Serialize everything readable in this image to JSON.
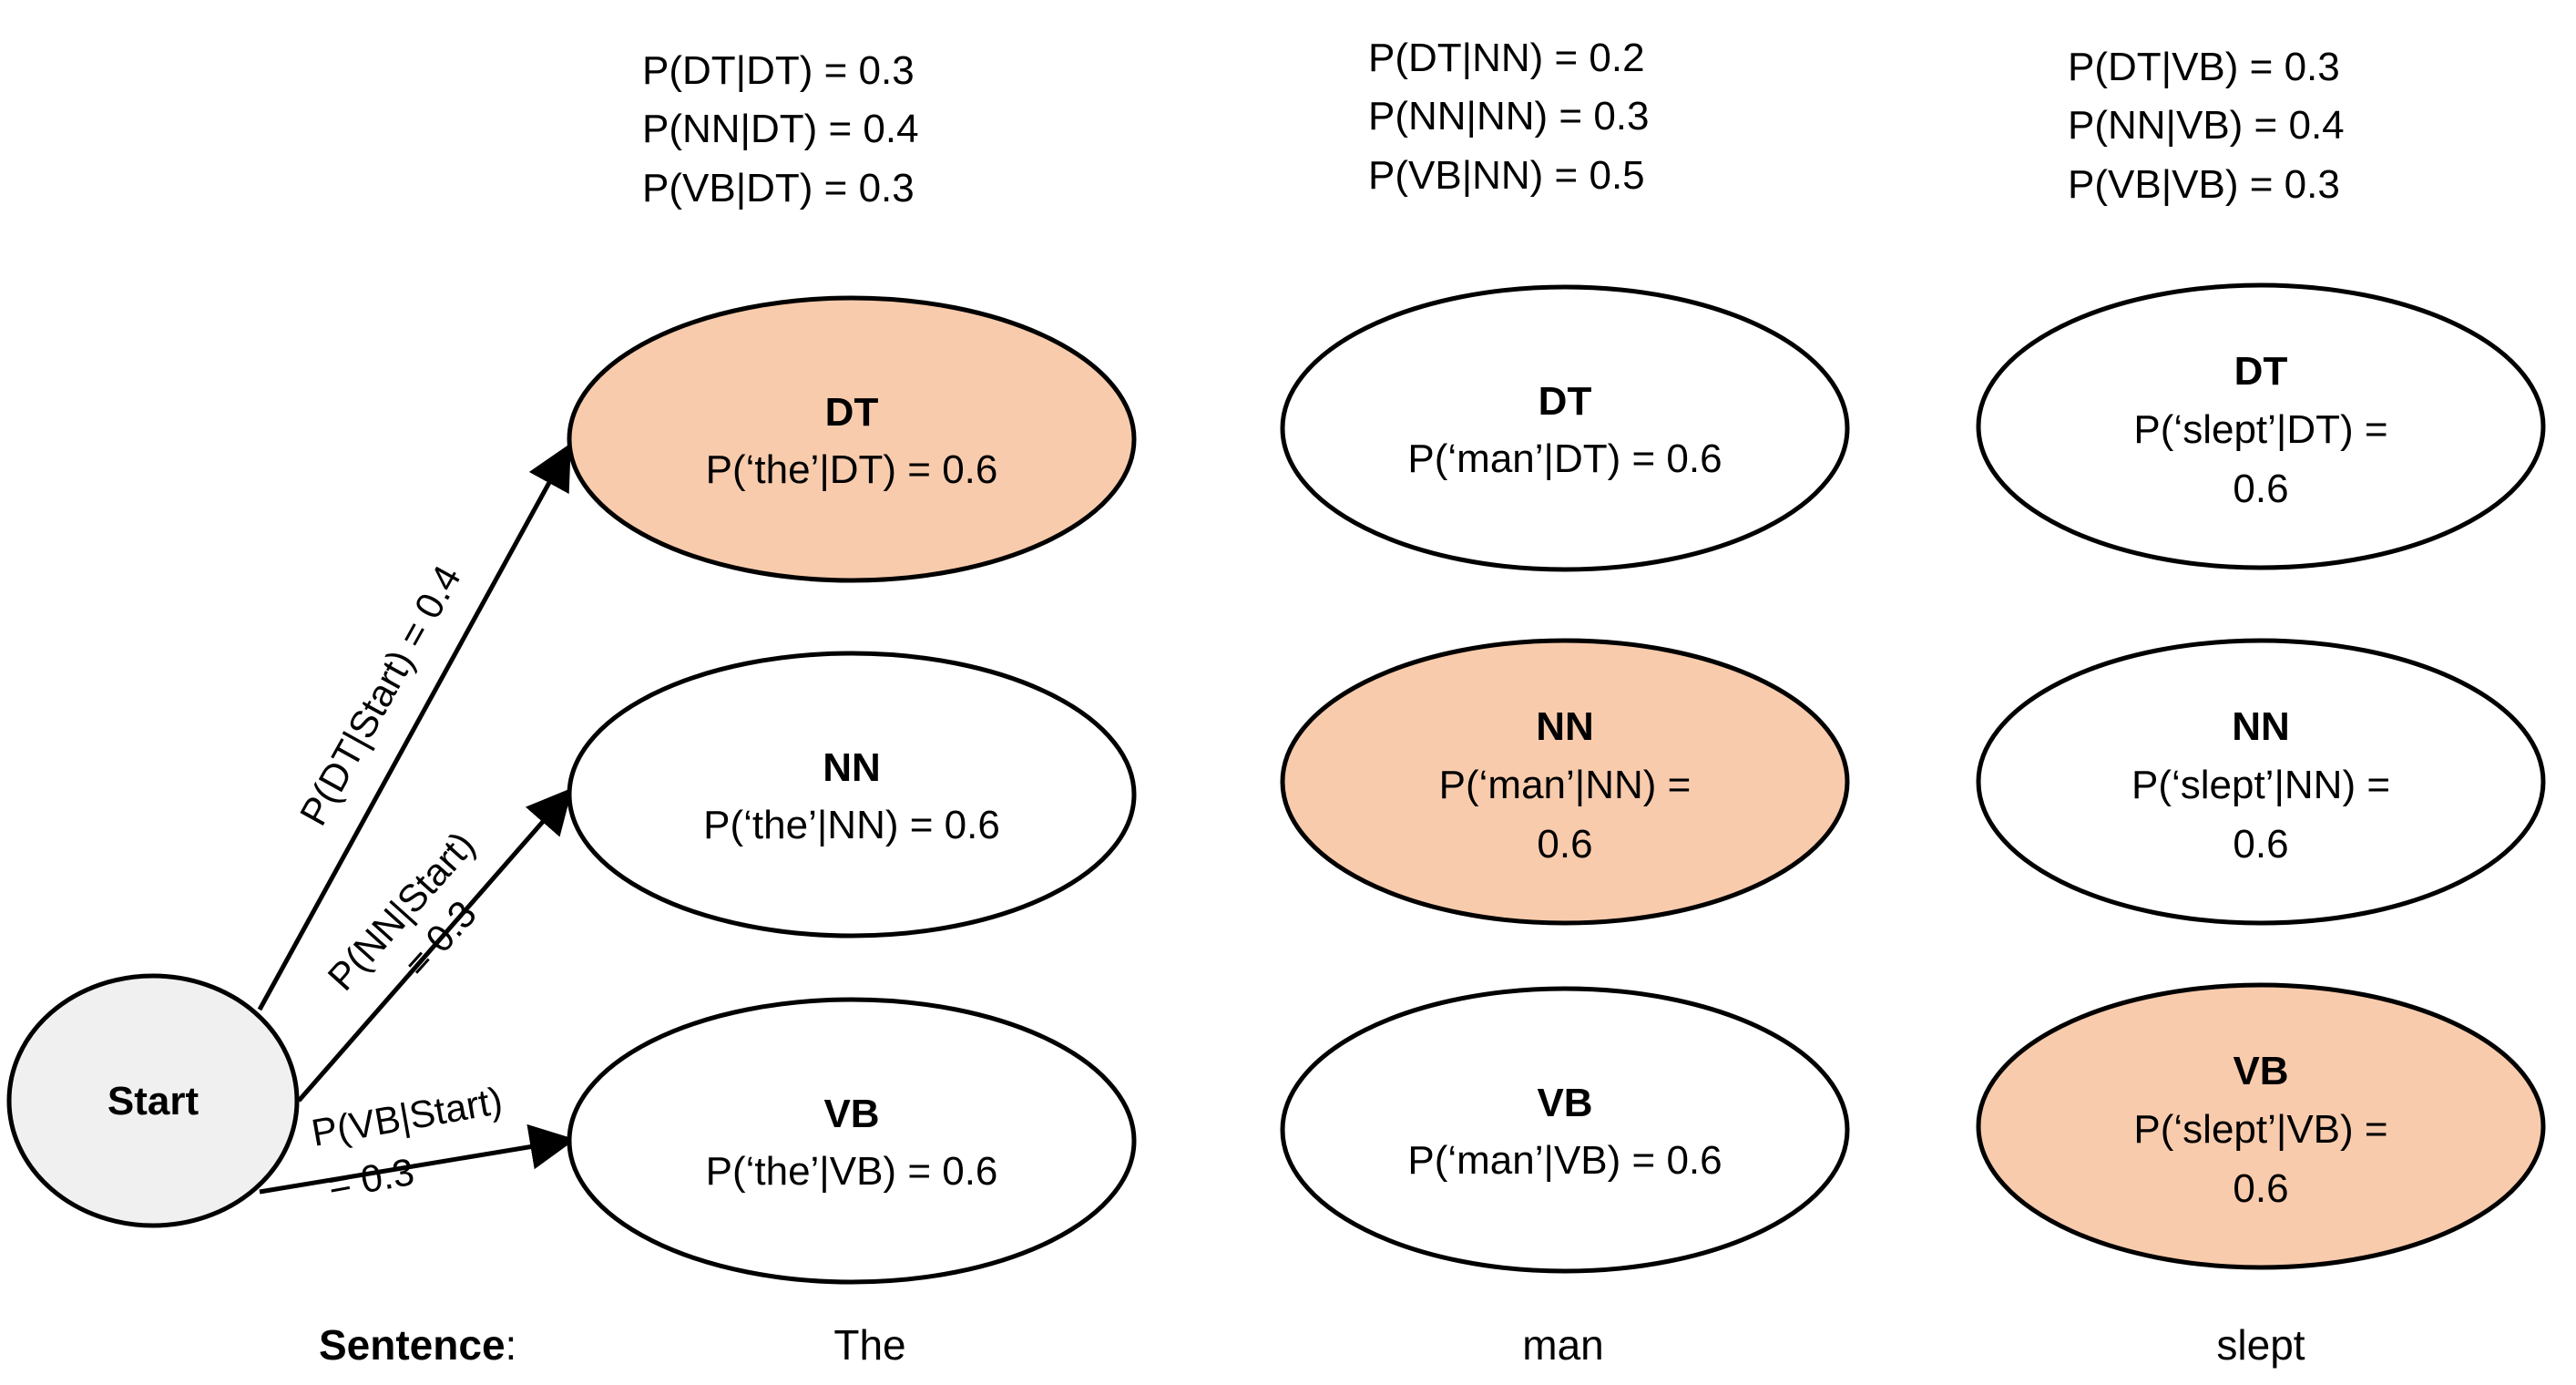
{
  "start": {
    "label": "Start",
    "fill": "#f0f0f0"
  },
  "highlight_color": "#f8cbad",
  "columns": [
    {
      "word": "The",
      "transitions": [
        "P(DT|DT)  = 0.3",
        "P(NN|DT) = 0.4",
        "P(VB|DT)  = 0.3"
      ],
      "nodes": [
        {
          "tag": "DT",
          "lines": [
            "P(‘the’|DT) = 0.6"
          ],
          "highlighted": true
        },
        {
          "tag": "NN",
          "lines": [
            "P(‘the’|NN) = 0.6"
          ],
          "highlighted": false
        },
        {
          "tag": "VB",
          "lines": [
            "P(‘the’|VB) = 0.6"
          ],
          "highlighted": false
        }
      ]
    },
    {
      "word": "man",
      "transitions": [
        "P(DT|NN)  = 0.2",
        "P(NN|NN) = 0.3",
        "P(VB|NN)  = 0.5"
      ],
      "nodes": [
        {
          "tag": "DT",
          "lines": [
            "P(‘man’|DT) = 0.6"
          ],
          "highlighted": false
        },
        {
          "tag": "NN",
          "lines": [
            "P(‘man’|NN) =",
            "0.6"
          ],
          "highlighted": true
        },
        {
          "tag": "VB",
          "lines": [
            "P(‘man’|VB) = 0.6"
          ],
          "highlighted": false
        }
      ]
    },
    {
      "word": "slept",
      "transitions": [
        "P(DT|VB)  = 0.3",
        "P(NN|VB) = 0.4",
        "P(VB|VB)  = 0.3"
      ],
      "nodes": [
        {
          "tag": "DT",
          "lines": [
            "P(‘slept’|DT) =",
            "0.6"
          ],
          "highlighted": false
        },
        {
          "tag": "NN",
          "lines": [
            "P(‘slept’|NN) =",
            "0.6"
          ],
          "highlighted": false
        },
        {
          "tag": "VB",
          "lines": [
            "P(‘slept’|VB) =",
            "0.6"
          ],
          "highlighted": true
        }
      ]
    }
  ],
  "start_edges": [
    {
      "lines": [
        "P(DT|Start) = 0.4"
      ]
    },
    {
      "lines": [
        "P(NN|Start)",
        "= 0.3"
      ]
    },
    {
      "lines": [
        "P(VB|Start)",
        "= 0.3"
      ]
    }
  ],
  "sentence": {
    "label": "Sentence",
    "suffix": ":"
  }
}
